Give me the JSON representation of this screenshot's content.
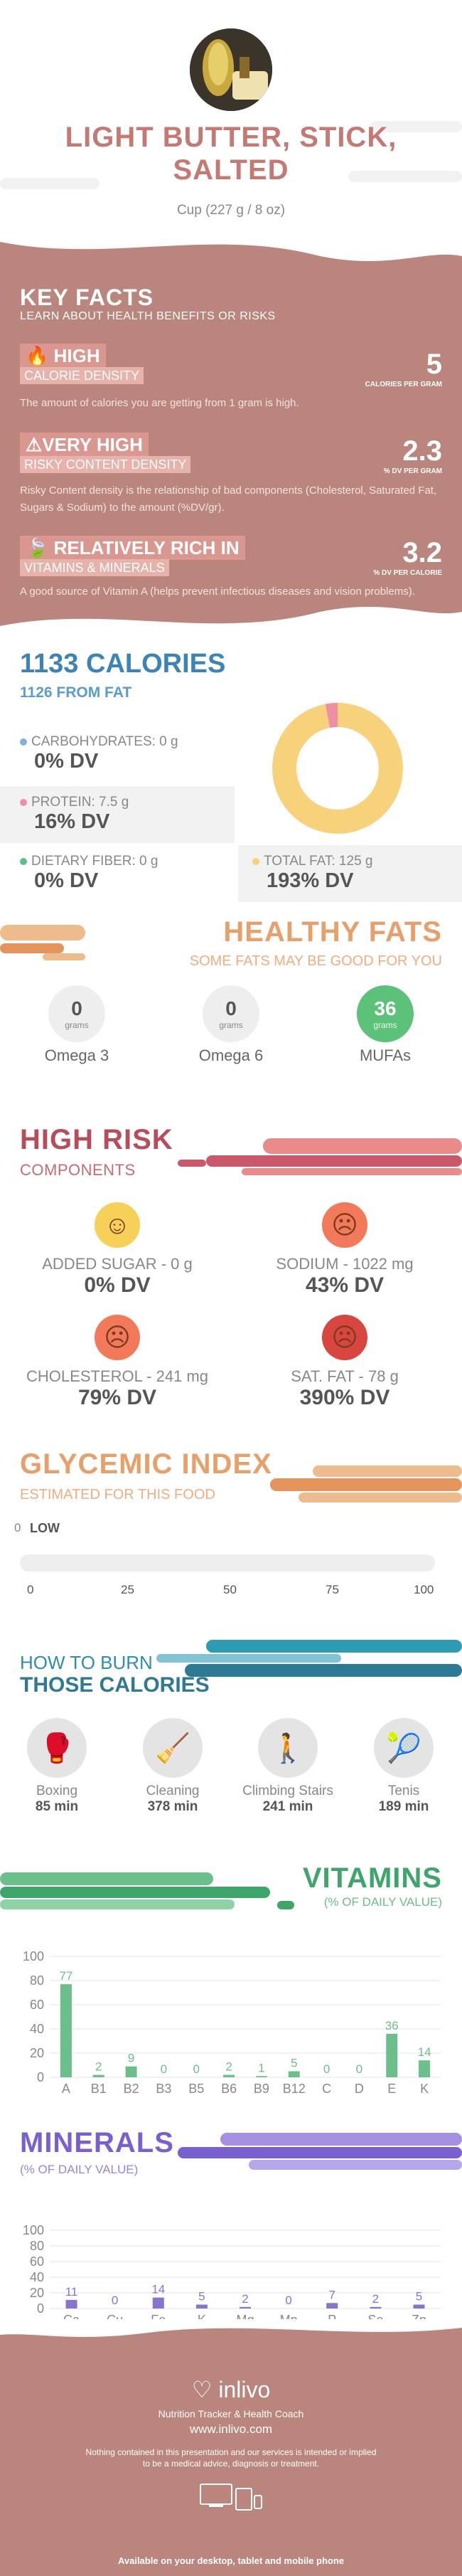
{
  "header": {
    "title_line1": "LIGHT BUTTER, STICK,",
    "title_line2": "SALTED",
    "serving": "Cup (227 g / 8 oz)"
  },
  "key_facts": {
    "heading": "KEY FACTS",
    "subheading": "LEARN ABOUT HEALTH BENEFITS OR RISKS",
    "items": [
      {
        "level": "HIGH",
        "label": "CALORIE DENSITY",
        "value": "5",
        "unit": "CALORIES PER GRAM",
        "desc": "The amount of calories you are getting from 1 gram is high.",
        "icon": "flame-icon"
      },
      {
        "level": "VERY HIGH",
        "label": "RISKY CONTENT DENSITY",
        "value": "2.3",
        "unit": "% DV PER GRAM",
        "desc": "Risky Content density is the relationship of bad components (Cholesterol, Saturated Fat, Sugars & Sodium) to the amount (%DV/gr).",
        "icon": "warning-icon"
      },
      {
        "level": "RELATIVELY RICH  IN",
        "label": "VITAMINS & MINERALS",
        "value": "3.2",
        "unit": "% DV PER CALORIE",
        "desc": "A good source of Vitamin A (helps prevent infectious diseases and vision problems).",
        "icon": "leaf-icon"
      }
    ]
  },
  "calories": {
    "title": "1133 CALORIES",
    "from_fat": "1126 FROM FAT",
    "carbs": {
      "label": "CARBOHYDRATES: 0 g",
      "dv": "0% DV",
      "color": "#7db3de"
    },
    "protein": {
      "label": "PROTEIN: 7.5 g",
      "dv": "16% DV",
      "color": "#ef8fa6"
    },
    "fiber": {
      "label": "DIETARY FIBER: 0 g",
      "dv": "0% DV",
      "color": "#5bbf8b"
    },
    "fat": {
      "label": "TOTAL FAT: 125 g",
      "dv": "193% DV",
      "color": "#f7d27a"
    },
    "donut": {
      "fat_fraction": 0.97,
      "protein_fraction": 0.03
    }
  },
  "healthy_fats": {
    "title": "HEALTHY FATS",
    "subtitle": "SOME FATS MAY BE GOOD FOR YOU",
    "items": [
      {
        "value": "0",
        "unit": "grams",
        "name": "Omega 3"
      },
      {
        "value": "0",
        "unit": "grams",
        "name": "Omega 6"
      },
      {
        "value": "36",
        "unit": "grams",
        "name": "MUFAs"
      }
    ]
  },
  "high_risk": {
    "title": "HIGH RISK",
    "subtitle": "COMPONENTS",
    "items": [
      {
        "label": "ADDED SUGAR - 0 g",
        "dv": "0% DV",
        "face": "happy-face-icon",
        "color": "#f7d057"
      },
      {
        "label": "SODIUM - 1022 mg",
        "dv": "43% DV",
        "face": "sad-face-icon",
        "color": "#f27a5a"
      },
      {
        "label": "CHOLESTEROL - 241 mg",
        "dv": "79% DV",
        "face": "sad-face-icon",
        "color": "#f27a5a"
      },
      {
        "label": "SAT. FAT - 78 g",
        "dv": "390% DV",
        "face": "sick-face-icon",
        "color": "#d9463f"
      }
    ]
  },
  "glycemic": {
    "title": "GLYCEMIC INDEX",
    "subtitle": "ESTIMATED FOR THIS FOOD",
    "value": "0",
    "level": "LOW",
    "ticks": [
      "0",
      "25",
      "50",
      "75",
      "100"
    ]
  },
  "burn": {
    "title1": "HOW TO BURN",
    "title2": "THOSE CALORIES",
    "items": [
      {
        "name": "Boxing",
        "time": "85 min",
        "icon": "boxing-icon"
      },
      {
        "name": "Cleaning",
        "time": "378 min",
        "icon": "cleaning-icon"
      },
      {
        "name": "Climbing Stairs",
        "time": "241 min",
        "icon": "stairs-icon"
      },
      {
        "name": "Tenis",
        "time": "189 min",
        "icon": "tennis-icon"
      }
    ]
  },
  "vitamins": {
    "title": "VITAMINS",
    "subtitle": "(% OF DAILY VALUE)"
  },
  "minerals": {
    "title": "MINERALS",
    "subtitle": "(% OF DAILY VALUE)"
  },
  "chart_data": [
    {
      "type": "bar",
      "categories": [
        "A",
        "B1",
        "B2",
        "B3",
        "B5",
        "B6",
        "B9",
        "B12",
        "C",
        "D",
        "E",
        "K"
      ],
      "values": [
        77,
        2,
        9,
        0,
        0,
        2,
        1,
        5,
        0,
        0,
        36,
        14
      ],
      "ylim": [
        0,
        100
      ],
      "yticks": [
        "0",
        "20",
        "40",
        "60",
        "80",
        "100"
      ],
      "color": "#6bbf8a"
    },
    {
      "type": "bar",
      "categories": [
        "Ca",
        "Cu",
        "Fe",
        "K",
        "Mg",
        "Mn",
        "P",
        "Se",
        "Zn"
      ],
      "values": [
        11,
        0,
        14,
        5,
        2,
        0,
        7,
        2,
        5
      ],
      "ylim": [
        0,
        100
      ],
      "yticks": [
        "0",
        "20",
        "40",
        "60",
        "80",
        "100"
      ],
      "color": "#8a72d4"
    }
  ],
  "footer": {
    "brand": "inlivo",
    "tagline": "Nutrition Tracker & Health Coach",
    "url": "www.inlivo.com",
    "disclaimer1": "Nothing contained in this presentation and our services is intended or implied",
    "disclaimer2": "to be a medical advice, diagnosis or treatment.",
    "available": "Available on your desktop, tablet and mobile phone"
  }
}
